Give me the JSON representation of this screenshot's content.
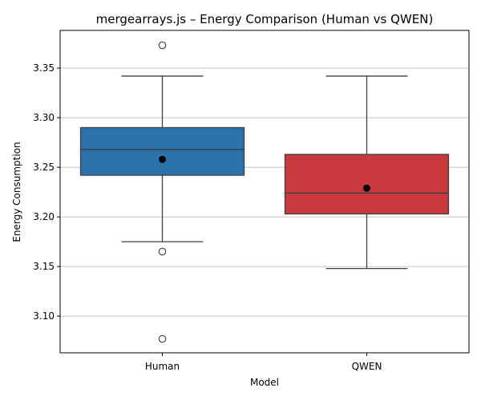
{
  "chart_data": {
    "type": "box",
    "title": "mergearrays.js – Energy Comparison (Human vs QWEN)",
    "xlabel": "Model",
    "ylabel": "Energy Consumption",
    "ylim": [
      3.063,
      3.388
    ],
    "yticks": [
      3.1,
      3.15,
      3.2,
      3.25,
      3.3,
      3.35
    ],
    "ytick_labels": [
      "3.10",
      "3.15",
      "3.20",
      "3.25",
      "3.30",
      "3.35"
    ],
    "grid": "y",
    "categories": [
      "Human",
      "QWEN"
    ],
    "boxes": [
      {
        "name": "Human",
        "color": "#2b72ad",
        "whisker_low": 3.175,
        "q1": 3.242,
        "median": 3.268,
        "q3": 3.29,
        "whisker_high": 3.342,
        "mean": 3.258,
        "outliers": [
          3.373,
          3.165,
          3.077
        ]
      },
      {
        "name": "QWEN",
        "color": "#c83a3d",
        "whisker_low": 3.148,
        "q1": 3.203,
        "median": 3.224,
        "q3": 3.263,
        "whisker_high": 3.342,
        "mean": 3.229,
        "outliers": []
      }
    ]
  }
}
